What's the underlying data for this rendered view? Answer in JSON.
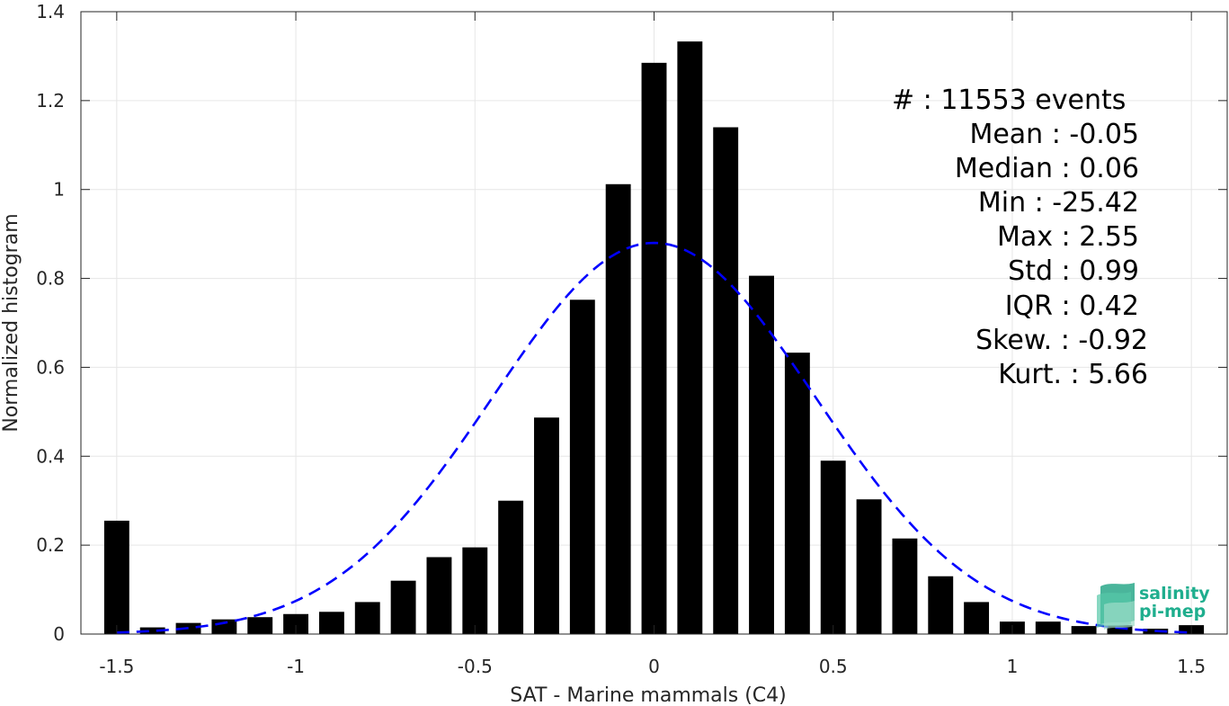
{
  "chart_data": {
    "type": "bar",
    "xlabel": "SAT - Marine mammals (C4)",
    "ylabel": "Normalized histogram",
    "xlim": [
      -1.6,
      1.6
    ],
    "ylim": [
      0,
      1.4
    ],
    "grid": true,
    "x_ticks": [
      -1.5,
      -1,
      -0.5,
      0,
      0.5,
      1,
      1.5
    ],
    "x_tick_labels": [
      "-1.5",
      "-1",
      "-0.5",
      "0",
      "0.5",
      "1",
      "1.5"
    ],
    "y_ticks": [
      0,
      0.2,
      0.4,
      0.6,
      0.8,
      1,
      1.2,
      1.4
    ],
    "y_tick_labels": [
      "0",
      "0.2",
      "0.4",
      "0.6",
      "0.8",
      "1",
      "1.2",
      "1.4"
    ],
    "bin_width": 0.07,
    "x": [
      -1.5,
      -1.4,
      -1.3,
      -1.2,
      -1.1,
      -1.0,
      -0.9,
      -0.8,
      -0.7,
      -0.6,
      -0.5,
      -0.4,
      -0.3,
      -0.2,
      -0.1,
      0.0,
      0.1,
      0.2,
      0.3,
      0.4,
      0.5,
      0.6,
      0.7,
      0.8,
      0.9,
      1.0,
      1.1,
      1.2,
      1.3,
      1.4,
      1.5
    ],
    "values": [
      0.255,
      0.015,
      0.025,
      0.033,
      0.038,
      0.045,
      0.05,
      0.072,
      0.12,
      0.173,
      0.195,
      0.3,
      0.487,
      0.752,
      1.012,
      1.285,
      1.333,
      1.14,
      0.806,
      0.633,
      0.39,
      0.303,
      0.215,
      0.13,
      0.072,
      0.028,
      0.028,
      0.018,
      0.02,
      0.012,
      0.02
    ],
    "fit": {
      "type": "gaussian",
      "mean": 0.0,
      "peak": 0.88,
      "sigma": 0.45,
      "color": "#0000ff",
      "x_range": [
        -1.5,
        1.5
      ]
    },
    "bar_color": "#000000",
    "stats": [
      "#  : 11553 events",
      "Mean : -0.05",
      "Median : 0.06",
      "Min : -25.42",
      "Max : 2.55",
      "Std : 0.99",
      "IQR : 0.42",
      "Skew. : -0.92",
      "Kurt. : 5.66"
    ]
  },
  "logo": {
    "line1": "salinity",
    "line2": "pi-mep"
  }
}
